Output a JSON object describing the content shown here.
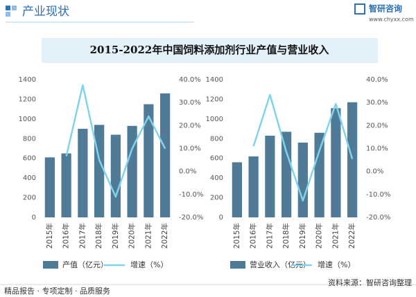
{
  "header": {
    "section": "产业现状",
    "brand": "智研咨询",
    "website": "www.chyxx.com"
  },
  "title": "2015-2022年中国饲料添加剂行业产值与营业收入",
  "chart_data": [
    {
      "type": "combo",
      "categories": [
        "2015年",
        "2016年",
        "2017年",
        "2018年",
        "2019年",
        "2020年",
        "2021年",
        "2022年"
      ],
      "series": [
        {
          "name": "产值（亿元）",
          "kind": "bar",
          "color": "#4f7b98",
          "values": [
            610,
            650,
            900,
            940,
            840,
            930,
            1150,
            1260
          ]
        },
        {
          "name": "增速（%）",
          "kind": "line",
          "axis": "y2",
          "color": "#7fd4ec",
          "values": [
            null,
            6.6,
            37.6,
            5,
            -11,
            10,
            24,
            10
          ]
        }
      ],
      "ylim": [
        0,
        1400
      ],
      "yticks": [
        0,
        200,
        400,
        600,
        800,
        1000,
        1200,
        1400
      ],
      "y2lim": [
        -20,
        40
      ],
      "y2ticks": [
        {
          "value": -20,
          "label": "-20.0%"
        },
        {
          "value": -10,
          "label": "-10.0%"
        },
        {
          "value": 0,
          "label": "0.0%"
        },
        {
          "value": 10,
          "label": "10.0%"
        },
        {
          "value": 20,
          "label": "20.0%"
        },
        {
          "value": 30,
          "label": "30.0%"
        },
        {
          "value": 40,
          "label": "40.0%"
        }
      ],
      "grid": false
    },
    {
      "type": "combo",
      "categories": [
        "2015年",
        "2016年",
        "2017年",
        "2018年",
        "2019年",
        "2020年",
        "2021年",
        "2022年"
      ],
      "series": [
        {
          "name": "营业收入（亿元）",
          "kind": "bar",
          "color": "#4f7b98",
          "values": [
            560,
            620,
            830,
            870,
            760,
            860,
            1110,
            1170
          ]
        },
        {
          "name": "增速（%）",
          "kind": "line",
          "axis": "y2",
          "color": "#7fd4ec",
          "values": [
            null,
            11,
            33.4,
            8.4,
            -12.7,
            9,
            29.5,
            5.4
          ]
        }
      ],
      "ylim": [
        0,
        1400
      ],
      "yticks": [
        0,
        200,
        400,
        600,
        800,
        1000,
        1200,
        1400
      ],
      "y2lim": [
        -20,
        40
      ],
      "y2ticks": [
        {
          "value": -20,
          "label": "-20.0%"
        },
        {
          "value": -10,
          "label": "-10.0%"
        },
        {
          "value": 0,
          "label": "0.0%"
        },
        {
          "value": 10,
          "label": "10.0%"
        },
        {
          "value": 20,
          "label": "20.0%"
        },
        {
          "value": 30,
          "label": "30.0%"
        },
        {
          "value": 40,
          "label": "40.0%"
        }
      ],
      "grid": false
    }
  ],
  "footer": {
    "slogan": "精品报告 · 专项定制 · 品质服务",
    "source": "资料来源：智研咨询整理"
  }
}
